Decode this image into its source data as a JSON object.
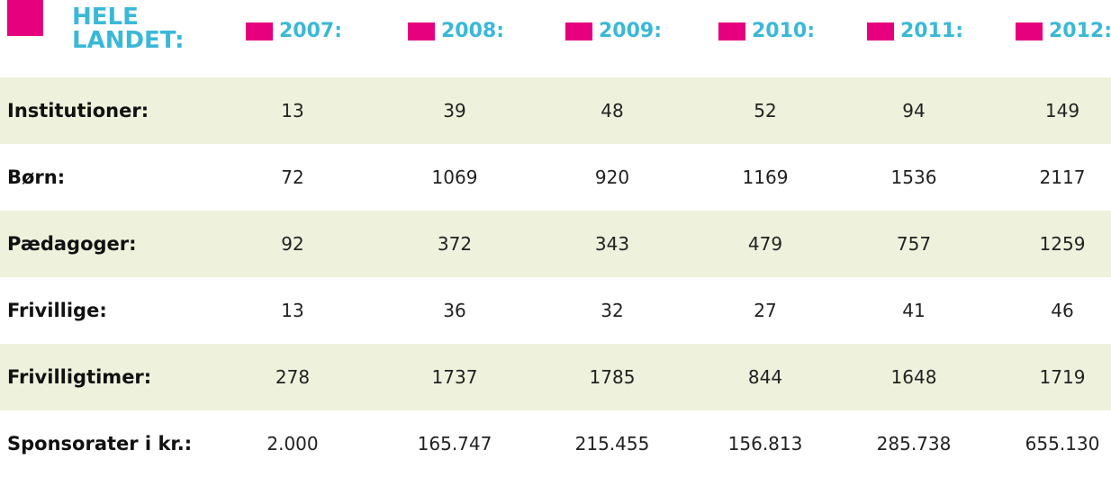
{
  "header": {
    "title": "HELE LANDET:",
    "years": [
      "2007:",
      "2008:",
      "2009:",
      "2010:",
      "2011:",
      "2012:"
    ]
  },
  "table": {
    "rows": [
      {
        "label": "Institutioner:",
        "values": [
          13,
          39,
          48,
          52,
          94,
          149
        ]
      },
      {
        "label": "Børn:",
        "values": [
          72,
          1069,
          920,
          1169,
          1536,
          2117
        ]
      },
      {
        "label": "Pædagoger:",
        "values": [
          92,
          372,
          343,
          479,
          757,
          1259
        ]
      },
      {
        "label": "Frivillige:",
        "values": [
          13,
          36,
          32,
          27,
          41,
          46
        ]
      },
      {
        "label": "Frivilligtimer:",
        "values": [
          278,
          1737,
          1785,
          844,
          1648,
          1719
        ]
      },
      {
        "label": "Sponsorater i kr.:",
        "values": [
          "2.000",
          "165.747",
          "215.455",
          "156.813",
          "285.738",
          "655.130"
        ]
      }
    ]
  }
}
